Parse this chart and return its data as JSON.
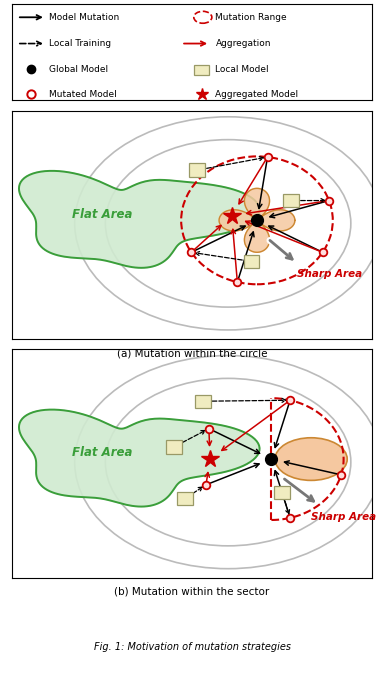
{
  "fig_width": 3.84,
  "fig_height": 6.92,
  "dpi": 100,
  "panel_a_caption": "(a) Mutation within the circle",
  "panel_b_caption": "(b) Mutation within the sector",
  "fig_caption": "Fig. 1: Motivation of mutation strategies",
  "green_color": "#3a9e3a",
  "green_fill": "#d0ead0",
  "orange_fill": "#f5c8a0",
  "orange_edge": "#cc8833",
  "red_color": "#cc0000",
  "gray_contour": "#bbbbbb",
  "legend_border": "#000000",
  "background": "#ffffff"
}
